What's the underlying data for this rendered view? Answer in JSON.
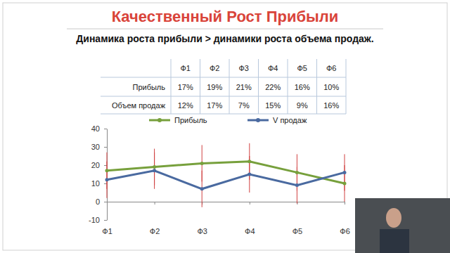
{
  "header": {
    "title": "Качественный Рост Прибыли",
    "subtitle": "Динамика роста прибыли > динамики роста объема продаж."
  },
  "table": {
    "columns": [
      "Ф1",
      "Ф2",
      "Ф3",
      "Ф4",
      "Ф5",
      "Ф6"
    ],
    "rows": [
      [
        "Прибыль",
        "17%",
        "19%",
        "21%",
        "22%",
        "16%",
        "10%"
      ],
      [
        "Объем продаж",
        "12%",
        "17%",
        "7%",
        "15%",
        "9%",
        "16%"
      ]
    ]
  },
  "chart_data": {
    "type": "line",
    "categories": [
      "Ф1",
      "Ф2",
      "Ф3",
      "Ф4",
      "Ф5",
      "Ф6"
    ],
    "series": [
      {
        "name": "Прибыль",
        "color": "#77a03c",
        "marker": "circle",
        "values": [
          17,
          19,
          21,
          22,
          16,
          10
        ],
        "error": [
          10,
          10,
          10,
          10,
          10,
          10
        ]
      },
      {
        "name": "V продаж",
        "color": "#4a6aa0",
        "marker": "circle",
        "values": [
          12,
          17,
          7,
          15,
          9,
          16
        ],
        "error": [
          10,
          10,
          10,
          10,
          10,
          10
        ]
      }
    ],
    "ylim": [
      -10,
      40
    ],
    "yticks": [
      -10,
      0,
      10,
      20,
      30,
      40
    ],
    "grid": false,
    "legend": "top"
  }
}
